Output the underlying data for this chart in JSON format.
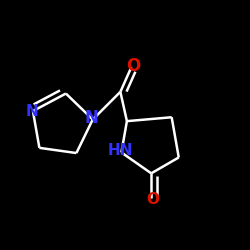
{
  "background_color": "#000000",
  "bond_color": "#ffffff",
  "atom_colors": {
    "N": "#3333ff",
    "O": "#dd1100",
    "C": "#ffffff"
  },
  "bond_lw": 1.8,
  "font_size": 11,
  "figsize": [
    2.5,
    2.5
  ],
  "dpi": 100
}
